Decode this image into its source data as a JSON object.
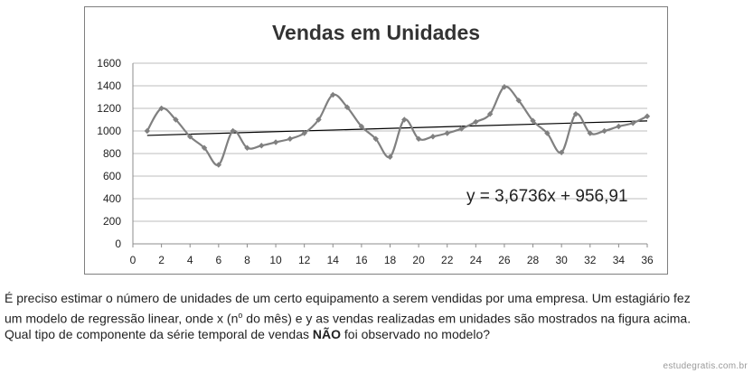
{
  "chart_data": {
    "type": "line",
    "title": "Vendas em Unidades",
    "xlabel": "",
    "ylabel": "",
    "xlim": [
      0,
      36
    ],
    "ylim": [
      0,
      1600
    ],
    "x_ticks": [
      0,
      2,
      4,
      6,
      8,
      10,
      12,
      14,
      16,
      18,
      20,
      22,
      24,
      26,
      28,
      30,
      32,
      34,
      36
    ],
    "y_ticks": [
      0,
      200,
      400,
      600,
      800,
      1000,
      1200,
      1400,
      1600
    ],
    "grid": "horizontal",
    "series": [
      {
        "color": "#808080",
        "smooth": true,
        "x": [
          1,
          2,
          3,
          4,
          5,
          6,
          7,
          8,
          9,
          10,
          11,
          12,
          13,
          14,
          15,
          16,
          17,
          18,
          19,
          20,
          21,
          22,
          23,
          24,
          25,
          26,
          27,
          28,
          29,
          30,
          31,
          32,
          33,
          34,
          35,
          36
        ],
        "values": [
          1000,
          1200,
          1100,
          950,
          850,
          700,
          1000,
          850,
          870,
          900,
          930,
          980,
          1100,
          1320,
          1210,
          1040,
          930,
          770,
          1100,
          930,
          950,
          980,
          1020,
          1080,
          1150,
          1390,
          1270,
          1090,
          980,
          810,
          1150,
          980,
          1000,
          1040,
          1070,
          1130
        ]
      }
    ],
    "trendline": {
      "color": "#000000",
      "slope": 3.6736,
      "intercept": 956.91,
      "x_range": [
        1,
        36
      ],
      "label": "y = 3,6736x + 956,91"
    }
  },
  "question": {
    "line1": "É preciso estimar o número de unidades de um certo equipamento a serem vendidas por uma empresa. Um estagiário fez",
    "line2_before": "um modelo de regressão linear, onde x (n",
    "line2_sup": "o",
    "line2_after": " do mês) e y as vendas realizadas em unidades são mostrados na figura acima.",
    "line3_before": "Qual tipo de componente da série temporal de vendas ",
    "line3_bold": "NÃO",
    "line3_after": " foi observado no modelo?"
  },
  "watermark": "estudegratis.com.br"
}
